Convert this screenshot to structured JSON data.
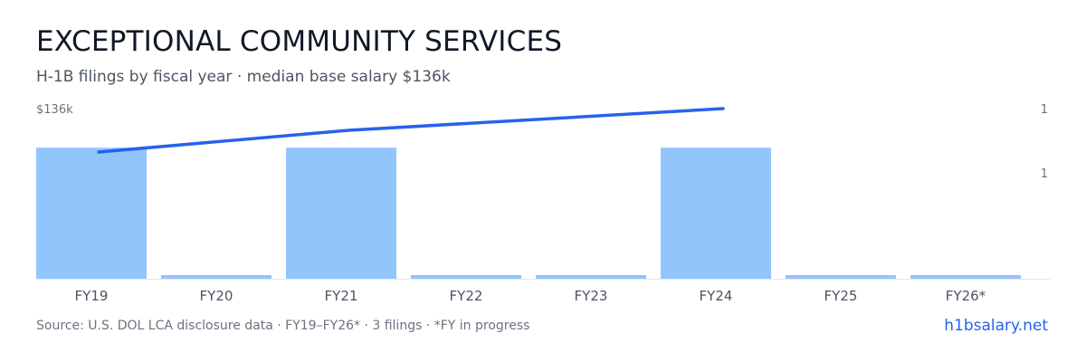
{
  "header": {
    "title": "EXCEPTIONAL COMMUNITY SERVICES",
    "subtitle": "H-1B filings by fiscal year · median base salary $136k"
  },
  "footer": {
    "source": "Source: U.S. DOL LCA disclosure data · FY19–FY26* · 3 filings · *FY in progress",
    "brand": "h1bsalary.net"
  },
  "colors": {
    "bar": "#93c5fd",
    "line": "#2563eb",
    "baseline": "#e5e7eb",
    "brand": "#2563eb"
  },
  "chart_data": {
    "type": "bar",
    "categories": [
      "FY19",
      "FY20",
      "FY21",
      "FY22",
      "FY23",
      "FY24",
      "FY25",
      "FY26*"
    ],
    "series": [
      {
        "type": "bar",
        "axis": "right",
        "values": [
          1,
          0,
          1,
          0,
          0,
          1,
          0,
          0
        ]
      },
      {
        "type": "line",
        "axis": "left",
        "values": [
          120,
          null,
          128,
          null,
          null,
          136,
          null,
          null
        ]
      }
    ],
    "left_axis": {
      "top_label": "$136k",
      "range": [
        0,
        136
      ]
    },
    "right_axis": {
      "tick_labels": [
        "1",
        "1"
      ],
      "range": [
        0,
        1.45
      ]
    },
    "legend": "none",
    "grid": false
  }
}
